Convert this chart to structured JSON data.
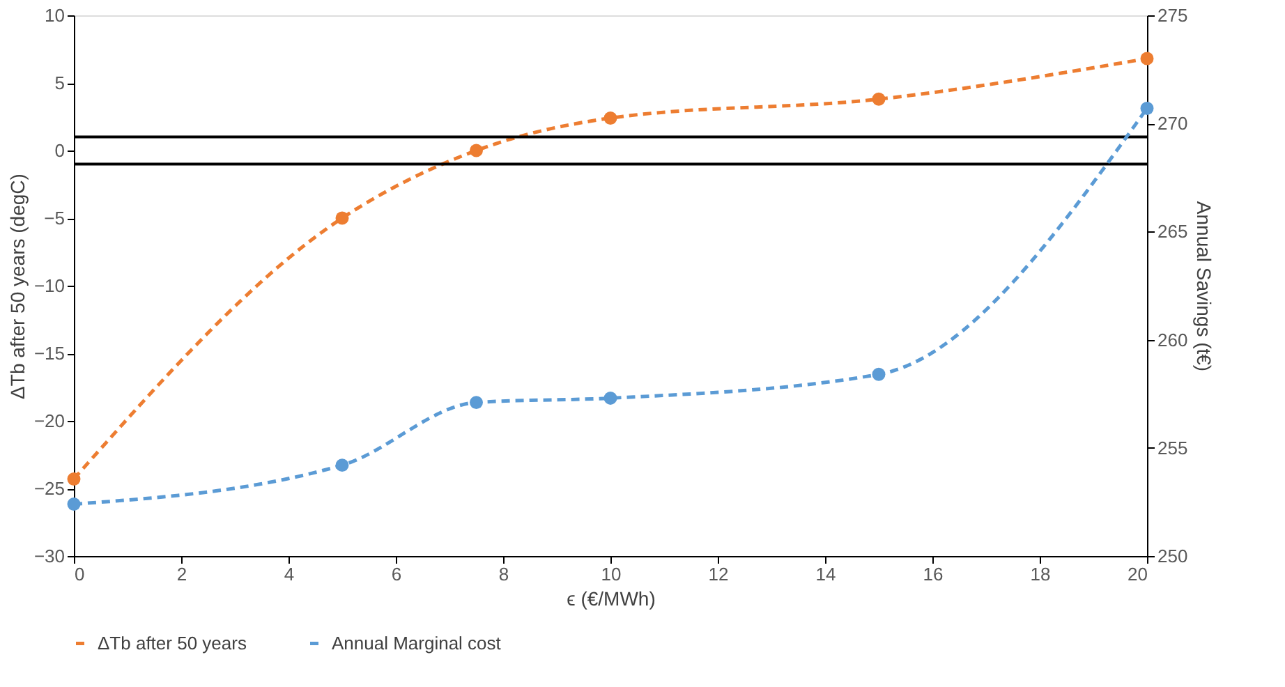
{
  "chart_data": {
    "type": "line",
    "xlabel": "ϵ (€/MWh)",
    "ylabel": "ΔTb after 50 years  (degC)",
    "y2label": "Annual Savings (t€)",
    "x": [
      0,
      5,
      7.5,
      10,
      15,
      20
    ],
    "series": [
      {
        "name": "ΔTb after 50 years",
        "color": "#ed7d31",
        "values": [
          -24.3,
          -5.0,
          0.0,
          2.4,
          3.8,
          6.8
        ]
      },
      {
        "name": "Annual Marginal cost",
        "color": "#5b9bd5",
        "axis": "y2",
        "values": [
          252.4,
          254.2,
          257.1,
          257.3,
          258.4,
          270.7
        ]
      }
    ],
    "xlim": [
      0,
      20
    ],
    "xticks": [
      0,
      2,
      4,
      6,
      8,
      10,
      12,
      14,
      16,
      18,
      20
    ],
    "ylim": [
      -30,
      10
    ],
    "yticks": [
      -30,
      -25,
      -20,
      -15,
      -10,
      -5,
      0,
      5,
      10
    ],
    "y2lim": [
      250,
      275
    ],
    "y2ticks": [
      250,
      255,
      260,
      265,
      270,
      275
    ],
    "ref_lines": [
      {
        "axis": "y",
        "value": 1,
        "label": null,
        "color": "#000000"
      },
      {
        "axis": "y",
        "value": -1,
        "label": null,
        "color": "#000000"
      }
    ],
    "marker": "circle",
    "line_style": "dashed",
    "grid": false,
    "legend": "bottom"
  }
}
